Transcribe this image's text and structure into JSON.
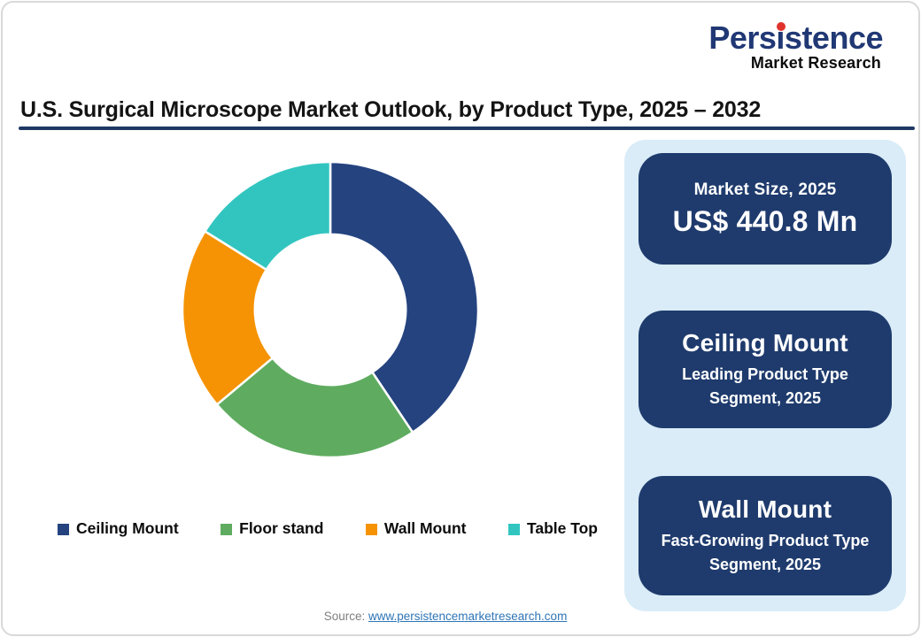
{
  "logo": {
    "brand": "Persistence",
    "tagline": "Market Research"
  },
  "title": "U.S. Surgical Microscope Market Outlook, by Product Type, 2025 – 2032",
  "colors": {
    "brand_navy": "#203874",
    "brand_red": "#E0332C",
    "underline_navy": "#1F3864",
    "panel_blue": "#D9ECF8",
    "card_navy": "#1F3B6D",
    "link_blue": "#2E75B6"
  },
  "chart_data": {
    "type": "pie",
    "subtype": "donut",
    "title": "U.S. Surgical Microscope Market Outlook, by Product Type, 2025 – 2032",
    "categories": [
      "Ceiling Mount",
      "Floor stand",
      "Wall Mount",
      "Table Top"
    ],
    "values": [
      40.6,
      23.3,
      20.0,
      16.1
    ],
    "unit": "% share (estimated from arc angles; no data labels shown)",
    "colors": [
      "#24437F",
      "#5FAC60",
      "#F59305",
      "#32C5C0"
    ],
    "start_angle_deg": 0,
    "clockwise": true,
    "inner_radius_ratio": 0.51,
    "legend_position": "bottom",
    "data_labels": false
  },
  "panel": {
    "cards": [
      {
        "kicker": "Market Size, 2025",
        "value": "US$ 440.8 Mn"
      },
      {
        "title": "Ceiling Mount",
        "subtitle": "Leading Product Type Segment, 2025"
      },
      {
        "title": "Wall Mount",
        "subtitle": "Fast-Growing Product Type Segment, 2025"
      }
    ]
  },
  "source": {
    "label": "Source:",
    "link_text": "www.persistencemarketresearch.com"
  }
}
